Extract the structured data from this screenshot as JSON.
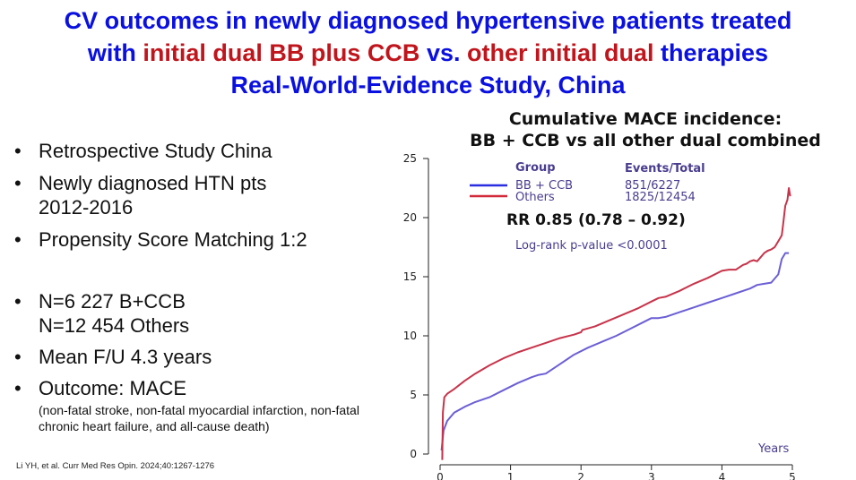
{
  "slide": {
    "title_line1": "CV outcomes in newly diagnosed hypertensive patients treated",
    "title_line2_a": "with ",
    "title_line2_b": "initial dual BB plus CCB",
    "title_line2_c": " vs. ",
    "title_line2_d": "other initial dual",
    "title_line2_e": " therapies",
    "title_line3": "Real-World-Evidence Study, China",
    "bullets": [
      {
        "text": "Retrospective Study China"
      },
      {
        "text": "Newly diagnosed HTN pts",
        "text2": "2012-2016"
      },
      {
        "text": "Propensity Score Matching 1:2"
      },
      {
        "text": "N=6 227 B+CCB",
        "text2": "N=12 454 Others"
      },
      {
        "text": "Mean F/U 4.3 years"
      },
      {
        "text": "Outcome: MACE",
        "sub": "(non-fatal stroke, non-fatal myocardial infarction, non-fatal chronic heart failure, and all-cause death)"
      }
    ],
    "bullet_glyph": "•",
    "reference": "Li YH, et al. Curr Med Res Opin. 2024;40:1267-1276"
  },
  "chart_data": {
    "type": "line",
    "title_line1": "Cumulative MACE incidence:",
    "title_line2": "BB + CCB vs all other dual combined",
    "xlabel": "Years",
    "ylabel": "",
    "xlim": [
      0,
      5
    ],
    "ylim": [
      0,
      25
    ],
    "x_ticks": [
      "0",
      "1",
      "2",
      "3",
      "4",
      "5"
    ],
    "y_ticks": [
      "0",
      "5",
      "10",
      "15",
      "20",
      "25"
    ],
    "legend": {
      "group_header": "Group",
      "events_header": "Events/Total",
      "position": "top-left"
    },
    "annotation_rr": "RR 0.85 (0.78 – 0.92)",
    "annotation_p": "Log-rank p-value <0.0001",
    "series": [
      {
        "name": "BB + CCB",
        "events": "851/6227",
        "color": "#6b5fd6",
        "x": [
          0.02,
          0.05,
          0.1,
          0.2,
          0.35,
          0.5,
          0.7,
          0.9,
          1.1,
          1.3,
          1.4,
          1.5,
          1.7,
          1.9,
          2.1,
          2.3,
          2.5,
          2.7,
          2.9,
          3.0,
          3.1,
          3.2,
          3.4,
          3.6,
          3.8,
          4.0,
          4.2,
          4.4,
          4.5,
          4.6,
          4.7,
          4.8,
          4.85,
          4.9,
          4.95
        ],
        "y": [
          0.3,
          2.0,
          2.8,
          3.5,
          4.0,
          4.4,
          4.8,
          5.4,
          6.0,
          6.5,
          6.7,
          6.8,
          7.6,
          8.4,
          9.0,
          9.5,
          10.0,
          10.6,
          11.2,
          11.5,
          11.5,
          11.6,
          12.0,
          12.4,
          12.8,
          13.2,
          13.6,
          14.0,
          14.3,
          14.4,
          14.5,
          15.2,
          16.5,
          17.0,
          17.0
        ]
      },
      {
        "name": "Others",
        "events": "1825/12454",
        "color": "#c8334a",
        "x": [
          0.03,
          0.04,
          0.06,
          0.1,
          0.2,
          0.35,
          0.5,
          0.7,
          0.9,
          1.1,
          1.3,
          1.5,
          1.7,
          1.9,
          2.0,
          2.02,
          2.2,
          2.4,
          2.6,
          2.8,
          3.0,
          3.1,
          3.2,
          3.4,
          3.6,
          3.8,
          4.0,
          4.1,
          4.2,
          4.3,
          4.35,
          4.4,
          4.45,
          4.5,
          4.6,
          4.65,
          4.7,
          4.75,
          4.8,
          4.85,
          4.87,
          4.9,
          4.93,
          4.95,
          4.97
        ],
        "y": [
          -0.5,
          3.5,
          4.8,
          5.1,
          5.5,
          6.2,
          6.8,
          7.5,
          8.1,
          8.6,
          9.0,
          9.4,
          9.8,
          10.1,
          10.3,
          10.5,
          10.8,
          11.3,
          11.8,
          12.3,
          12.9,
          13.2,
          13.3,
          13.8,
          14.4,
          14.9,
          15.5,
          15.6,
          15.6,
          16.0,
          16.1,
          16.3,
          16.4,
          16.3,
          17.0,
          17.2,
          17.3,
          17.5,
          18.0,
          18.5,
          19.5,
          21.0,
          21.5,
          22.5,
          21.8
        ]
      }
    ]
  }
}
